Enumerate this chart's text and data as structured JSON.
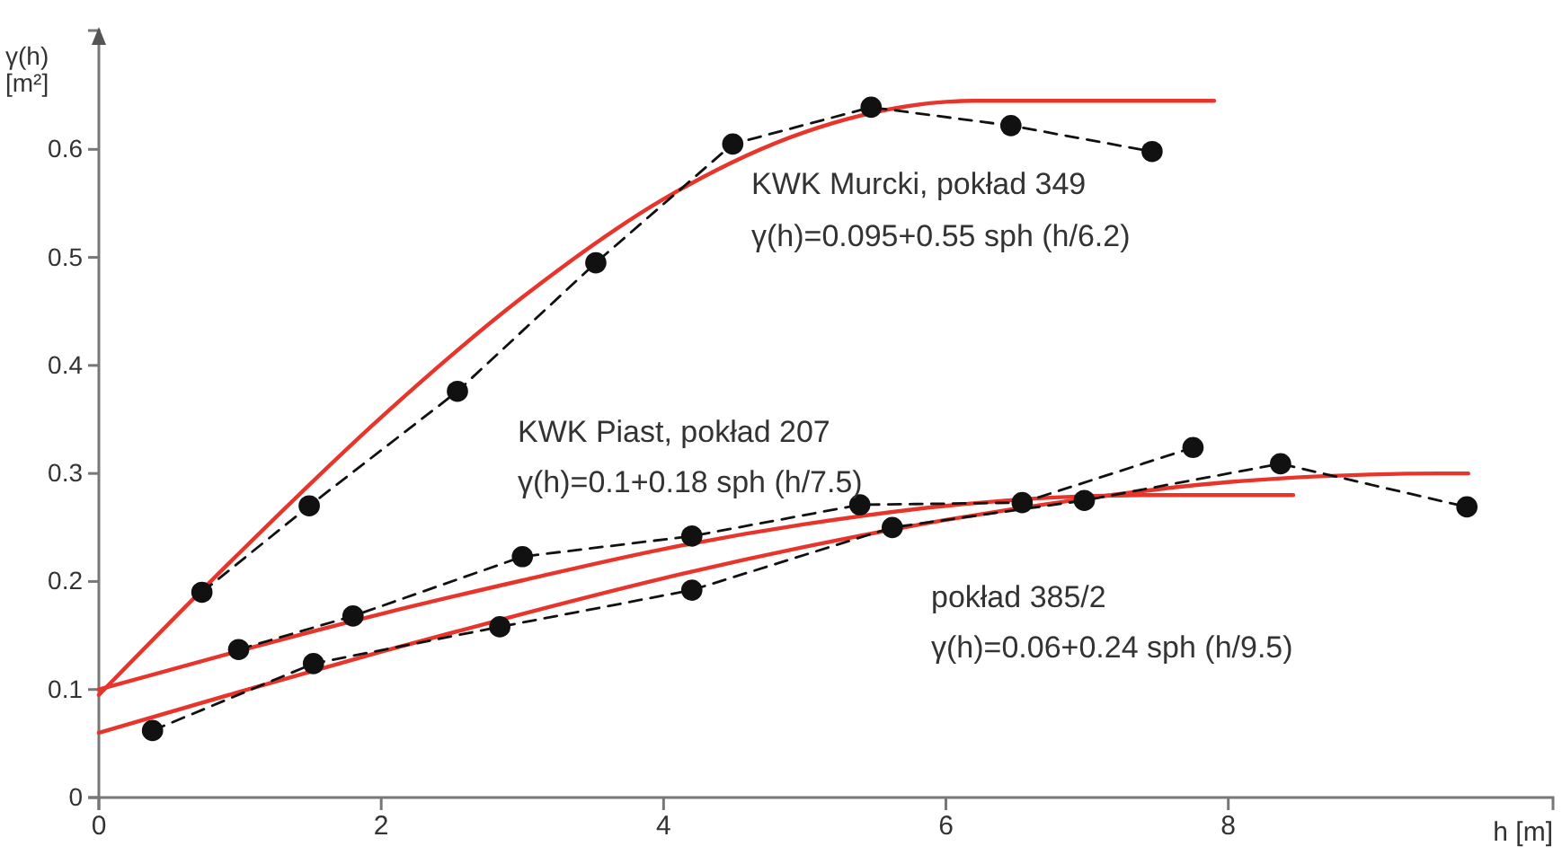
{
  "chart_data": {
    "type": "line",
    "xlabel": "h [m]",
    "ylabel": "γ(h) [m²]",
    "xlim": [
      0,
      10.3
    ],
    "ylim": [
      0,
      0.71
    ],
    "xticks": [
      0,
      2,
      4,
      6,
      8
    ],
    "yticks": [
      0,
      0.1,
      0.2,
      0.3,
      0.4,
      0.5,
      0.6
    ],
    "grid": false,
    "series": [
      {
        "type": "line",
        "color": "#e8352b",
        "marker": "none",
        "line_style": "solid",
        "x": [
          0,
          1,
          2,
          3,
          4,
          5,
          6,
          6.2,
          7.9
        ],
        "values": [
          0.095,
          0.227,
          0.352,
          0.463,
          0.554,
          0.616,
          0.644,
          0.645,
          0.645
        ]
      },
      {
        "type": "line",
        "color": "#e8352b",
        "marker": "none",
        "line_style": "solid",
        "x": [
          0,
          1,
          2,
          3,
          4,
          5,
          6,
          7,
          7.5,
          8.46
        ],
        "values": [
          0.1,
          0.136,
          0.17,
          0.201,
          0.23,
          0.253,
          0.27,
          0.279,
          0.28,
          0.28
        ]
      },
      {
        "type": "line",
        "color": "#e8352b",
        "marker": "none",
        "line_style": "solid",
        "x": [
          0,
          1,
          2,
          3,
          4,
          5,
          6,
          7,
          8,
          9,
          9.5,
          9.7
        ],
        "values": [
          0.06,
          0.098,
          0.135,
          0.17,
          0.203,
          0.232,
          0.257,
          0.277,
          0.292,
          0.299,
          0.3,
          0.3
        ]
      },
      {
        "type": "line",
        "color": "#111111",
        "marker": "circle",
        "line_style": "dashed",
        "x": [
          0.73,
          1.49,
          2.54,
          3.52,
          4.49,
          5.47,
          6.46,
          7.46
        ],
        "values": [
          0.19,
          0.27,
          0.376,
          0.495,
          0.605,
          0.639,
          0.622,
          0.598
        ]
      },
      {
        "type": "line",
        "color": "#111111",
        "marker": "circle",
        "line_style": "dashed",
        "x": [
          0.99,
          1.8,
          3.0,
          4.2,
          5.39,
          6.54,
          7.75
        ],
        "values": [
          0.137,
          0.168,
          0.223,
          0.242,
          0.271,
          0.273,
          0.324
        ]
      },
      {
        "type": "line",
        "color": "#111111",
        "marker": "circle",
        "line_style": "dashed",
        "x": [
          0.38,
          1.52,
          2.84,
          4.2,
          5.62,
          6.98,
          8.37,
          9.69
        ],
        "values": [
          0.062,
          0.124,
          0.158,
          0.192,
          0.25,
          0.275,
          0.309,
          0.269
        ]
      }
    ],
    "annotations": [
      "KWK Murcki, pokład 349",
      "γ(h)=0.095+0.55 sph (h/6.2)",
      "KWK Piast, pokład 207",
      "γ(h)=0.1+0.18 sph (h/7.5)",
      "pokład 385/2",
      "γ(h)=0.06+0.24 sph (h/9.5)"
    ]
  }
}
